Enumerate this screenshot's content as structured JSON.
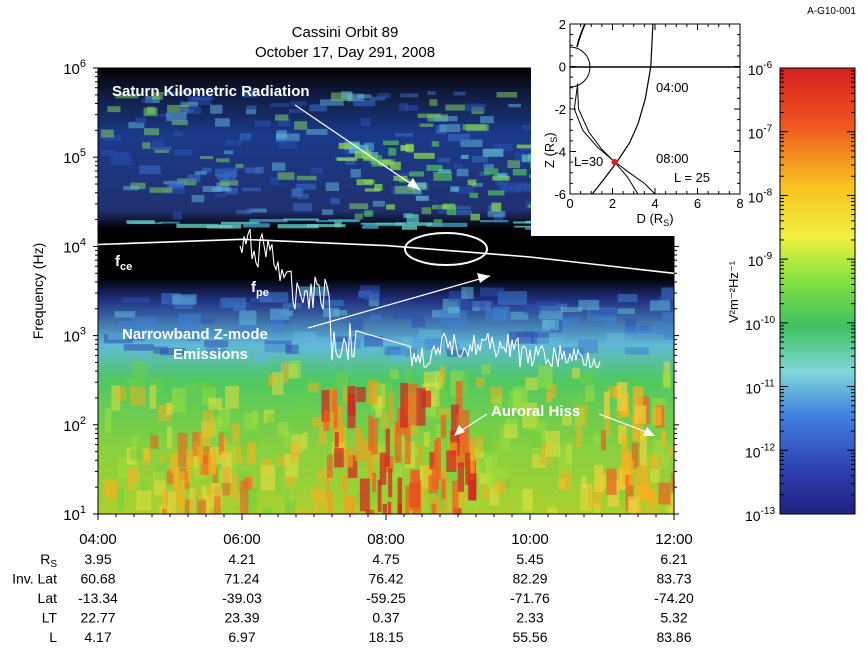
{
  "figure_id": "A-G10-001",
  "title_line1": "Cassini Orbit 89",
  "title_line2": "October 17, Day 291, 2008",
  "colors": {
    "background_black": "#000000",
    "white_curve": "#ffffff",
    "marker_red": "#e02020",
    "inset_line": "#000000"
  },
  "chart_data": [
    {
      "type": "heatmap",
      "title": "Cassini Orbit 89",
      "subtitle": "October 17, Day 291, 2008",
      "ylabel": "Frequency (Hz)",
      "yscale": "log",
      "ylim": [
        10,
        1000000
      ],
      "y_ticks": [
        {
          "value": 10,
          "base": "10",
          "exp": "1"
        },
        {
          "value": 100,
          "base": "10",
          "exp": "2"
        },
        {
          "value": 1000,
          "base": "10",
          "exp": "3"
        },
        {
          "value": 10000,
          "base": "10",
          "exp": "4"
        },
        {
          "value": 100000,
          "base": "10",
          "exp": "5"
        },
        {
          "value": 1000000,
          "base": "10",
          "exp": "6"
        }
      ],
      "x_ticks": [
        "04:00",
        "06:00",
        "08:00",
        "10:00",
        "12:00"
      ],
      "xlim_hours": [
        4,
        12
      ],
      "ephemeris": [
        {
          "sym": "R",
          "sub": "S",
          "values": [
            "3.95",
            "4.21",
            "4.75",
            "5.45",
            "6.21"
          ]
        },
        {
          "sym": "Inv. Lat",
          "sub": "",
          "values": [
            "60.68",
            "71.24",
            "76.42",
            "82.29",
            "83.73"
          ]
        },
        {
          "sym": "Lat",
          "sub": "",
          "values": [
            "-13.34",
            "-39.03",
            "-59.25",
            "-71.76",
            "-74.20"
          ]
        },
        {
          "sym": "LT",
          "sub": "",
          "values": [
            "22.77",
            "23.39",
            "0.37",
            "2.33",
            "5.32"
          ]
        },
        {
          "sym": "L",
          "sub": "",
          "values": [
            "4.17",
            "6.97",
            "18.15",
            "55.56",
            "83.86"
          ]
        }
      ],
      "annotations": [
        {
          "id": "skr",
          "text": "Saturn Kilometric Radiation"
        },
        {
          "id": "zmode1",
          "text": "Narrowband Z-mode"
        },
        {
          "id": "zmode2",
          "text": "Emissions"
        },
        {
          "id": "hiss",
          "text": "Auroral Hiss"
        },
        {
          "id": "fce",
          "base": "f",
          "sub": "ce"
        },
        {
          "id": "fpe",
          "base": "f",
          "sub": "pe"
        }
      ],
      "fce_curve": {
        "x_hours": [
          4,
          6,
          8,
          10,
          12
        ],
        "y_hz": [
          10500,
          12000,
          10200,
          7600,
          5000
        ]
      }
    },
    {
      "type": "line",
      "xlabel_base": "D (R",
      "xlabel_sub": "S",
      "ylabel_base": "Z (R",
      "ylabel_sub": "S",
      "xlim": [
        0,
        8
      ],
      "ylim": [
        -6,
        2
      ],
      "x_ticks": [
        "0",
        "2",
        "4",
        "6",
        "8"
      ],
      "y_ticks": [
        "2",
        "0",
        "-2",
        "-4",
        "-6"
      ],
      "labels": [
        {
          "id": "t0400",
          "text": "04:00"
        },
        {
          "id": "t0800",
          "text": "08:00"
        },
        {
          "id": "l30",
          "text": "L=30"
        },
        {
          "id": "l25",
          "text": "L = 25"
        }
      ],
      "trajectory": {
        "d": [
          3.9,
          3.8,
          3.55,
          3.2,
          2.8,
          2.2,
          1.6,
          1.05
        ],
        "z": [
          2,
          0,
          -1.5,
          -2.7,
          -3.6,
          -4.5,
          -5.3,
          -6
        ]
      },
      "l30_line": {
        "d": [
          0.35,
          0.2,
          0.6,
          1.3,
          2.0,
          2.8,
          3.5,
          4.0
        ],
        "z": [
          -0.9,
          -2,
          -3,
          -3.8,
          -4.4,
          -5,
          -5.5,
          -6
        ]
      },
      "l25_line": {
        "d": [
          0.35,
          0.4,
          0.9,
          1.5,
          2.1,
          2.7,
          3.2
        ],
        "z": [
          -0.8,
          -2,
          -3.1,
          -3.9,
          -4.5,
          -5.2,
          -6
        ]
      },
      "marker": {
        "d": 2.1,
        "z": -4.5
      }
    },
    {
      "type": "colorbar",
      "ylabel": "V²m⁻²Hz⁻¹",
      "scale": "log",
      "range": [
        1e-13,
        1e-06
      ],
      "ticks": [
        {
          "base": "10",
          "exp": "-6"
        },
        {
          "base": "10",
          "exp": "-7"
        },
        {
          "base": "10",
          "exp": "-8"
        },
        {
          "base": "10",
          "exp": "-9"
        },
        {
          "base": "10",
          "exp": "-10"
        },
        {
          "base": "10",
          "exp": "-11"
        },
        {
          "base": "10",
          "exp": "-12"
        },
        {
          "base": "10",
          "exp": "-13"
        }
      ]
    }
  ]
}
